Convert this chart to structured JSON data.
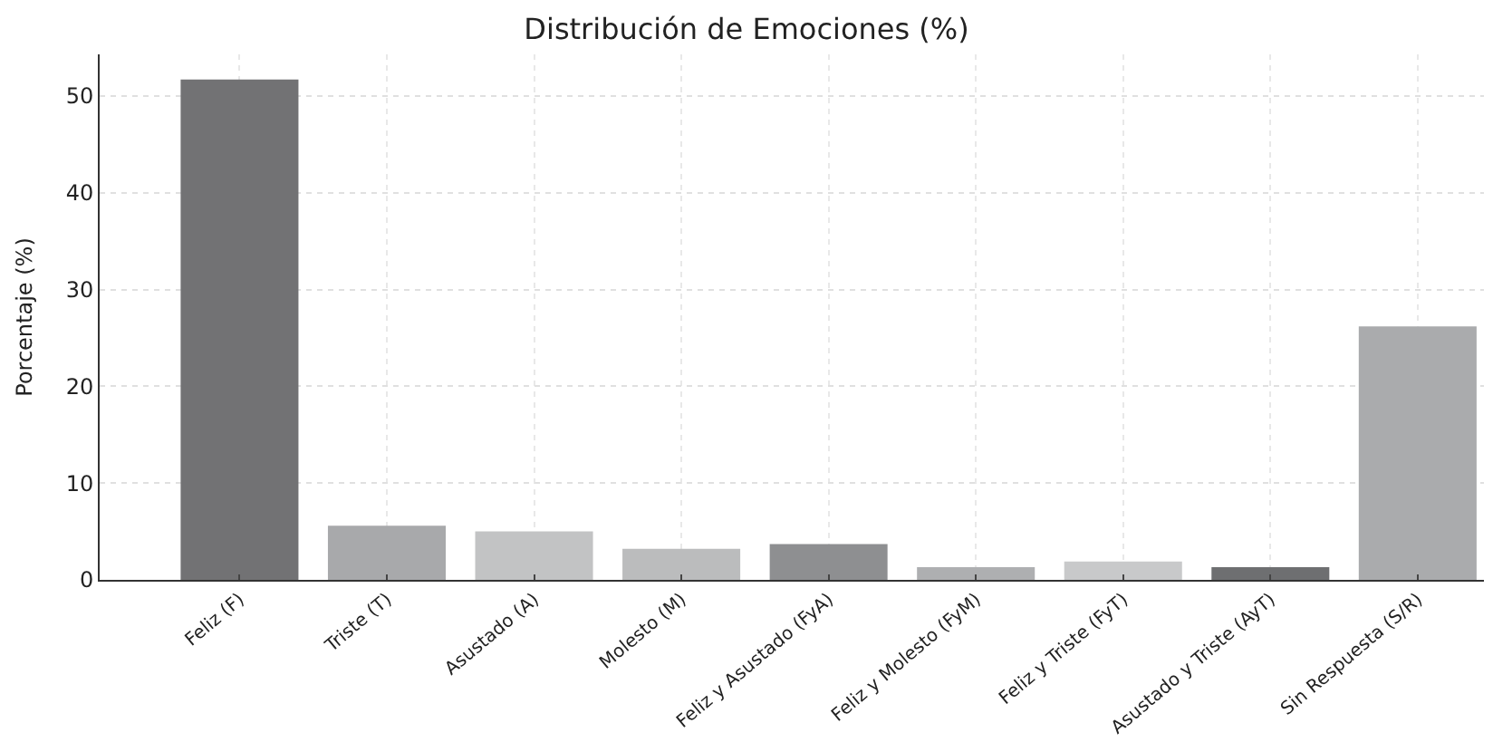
{
  "chart_data": {
    "type": "bar",
    "title": "Distribución de Emociones (%)",
    "ylabel": "Porcentaje (%)",
    "categories": [
      "Feliz (F)",
      "Triste (T)",
      "Asustado (A)",
      "Molesto (M)",
      "Feliz y Asustado (FyA)",
      "Feliz y Molesto (FyM)",
      "Feliz y Triste (FyT)",
      "Asustado y Triste (AyT)",
      "Sin Respuesta (S/R)"
    ],
    "values": [
      51.7,
      5.6,
      5.0,
      3.2,
      3.7,
      1.3,
      1.9,
      1.3,
      26.2
    ],
    "colors": [
      "#727274",
      "#a8a9ab",
      "#c2c3c4",
      "#bbbcbd",
      "#8e8f91",
      "#aeafb1",
      "#c8c9ca",
      "#6e6f71",
      "#aaabad"
    ],
    "ylim": [
      0,
      54.3
    ],
    "yticks": [
      0,
      10,
      20,
      30,
      40,
      50
    ],
    "grid": true
  }
}
